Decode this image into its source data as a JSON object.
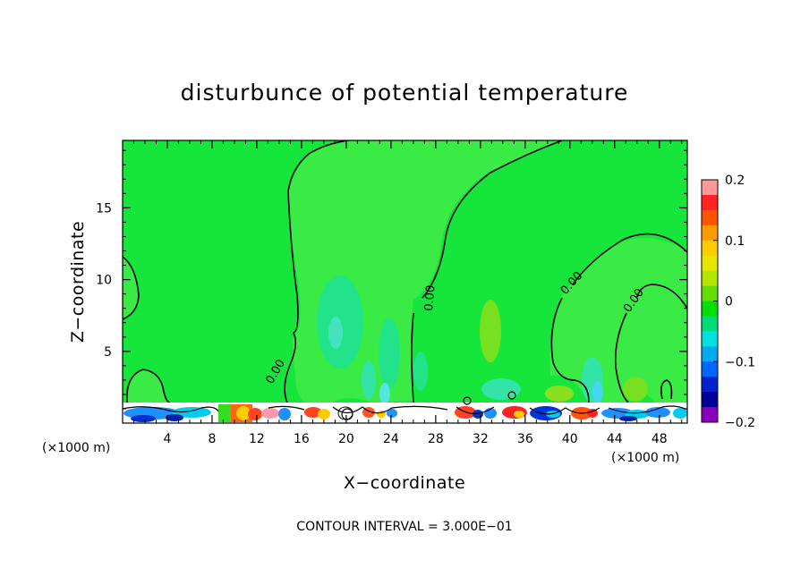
{
  "chart_data": {
    "type": "heatmap",
    "title": "disturbunce of potential temperature",
    "xlabel": "X−coordinate",
    "ylabel": "Z−coordinate",
    "x_unit_left": "(×1000 m)",
    "x_unit_right": "(×1000 m)",
    "xlim": [
      0,
      50.5
    ],
    "ylim": [
      0,
      19.7
    ],
    "x_ticks": [
      4,
      8,
      12,
      16,
      20,
      24,
      28,
      32,
      36,
      40,
      44,
      48
    ],
    "x_tick_labels": [
      "4",
      "8",
      "12",
      "16",
      "20",
      "24",
      "28",
      "32",
      "36",
      "40",
      "44",
      "48"
    ],
    "y_ticks": [
      5,
      10,
      15
    ],
    "y_tick_labels": [
      "5",
      "10",
      "15"
    ],
    "colorbar": {
      "range": [
        -0.2,
        0.2
      ],
      "ticks": [
        0.2,
        0.1,
        0,
        -0.1,
        -0.2
      ],
      "tick_labels": [
        "0.2",
        "0.1",
        "0",
        "−0.1",
        "−0.2"
      ],
      "colors": [
        "#ff9999",
        "#ff2222",
        "#ff5500",
        "#ff9900",
        "#ffcc00",
        "#e6e600",
        "#b3e600",
        "#66dd00",
        "#00e000",
        "#00dd77",
        "#00e0e0",
        "#00aaee",
        "#0066ff",
        "#0022cc",
        "#000099",
        "#8800bb"
      ]
    },
    "contour_interval_text": "CONTOUR INTERVAL = 3.000E−01",
    "contour_label": "0.00",
    "background_value": 0,
    "grid": false
  }
}
